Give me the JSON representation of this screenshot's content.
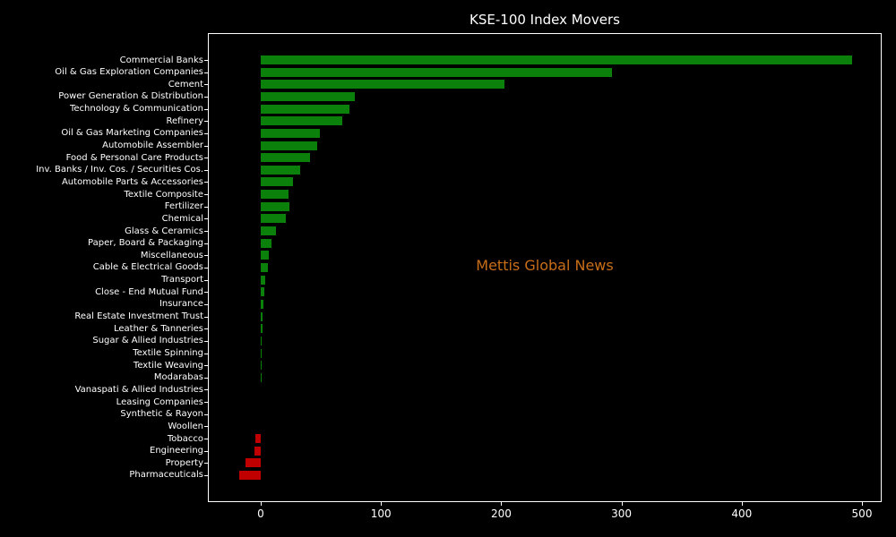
{
  "title": "KSE-100 Index Movers",
  "watermark": {
    "text": "Mettis Global News",
    "color": "#c86e19"
  },
  "colors": {
    "background": "#000000",
    "frame": "#ffffff",
    "text": "#ffffff",
    "positive_bar": "#0b800b",
    "negative_bar": "#c00000"
  },
  "chart_data": {
    "type": "bar",
    "orientation": "horizontal",
    "title": "KSE-100 Index Movers",
    "xlabel": "",
    "ylabel": "",
    "grid": false,
    "legend": null,
    "xlim": [
      -43,
      516
    ],
    "x_ticks": [
      0,
      100,
      200,
      300,
      400,
      500
    ],
    "categories": [
      "Commercial Banks",
      "Oil & Gas Exploration Companies",
      "Cement",
      "Power Generation & Distribution",
      "Technology & Communication",
      "Refinery",
      "Oil & Gas Marketing Companies",
      "Automobile Assembler",
      "Food & Personal Care Products",
      "Inv. Banks / Inv. Cos. / Securities Cos.",
      "Automobile Parts & Accessories",
      "Textile Composite",
      "Fertilizer",
      "Chemical",
      "Glass & Ceramics",
      "Paper, Board & Packaging",
      "Miscellaneous",
      "Cable & Electrical Goods",
      "Transport",
      "Close - End Mutual Fund",
      "Insurance",
      "Real Estate Investment Trust",
      "Leather & Tanneries",
      "Sugar & Allied Industries",
      "Textile Spinning",
      "Textile Weaving",
      "Modarabas",
      "Vanaspati & Allied Industries",
      "Leasing Companies",
      "Synthetic & Rayon",
      "Woollen",
      "Tobacco",
      "Engineering",
      "Property",
      "Pharmaceuticals"
    ],
    "values": [
      492,
      292,
      203,
      78,
      74,
      68,
      49,
      47,
      41,
      33,
      27,
      23,
      24,
      21,
      13,
      9,
      6.5,
      6,
      3.5,
      3,
      2.3,
      1.7,
      1.2,
      0.6,
      0.5,
      0.4,
      0.3,
      0,
      0,
      0,
      0,
      -4.5,
      -5.5,
      -13,
      -18
    ]
  }
}
